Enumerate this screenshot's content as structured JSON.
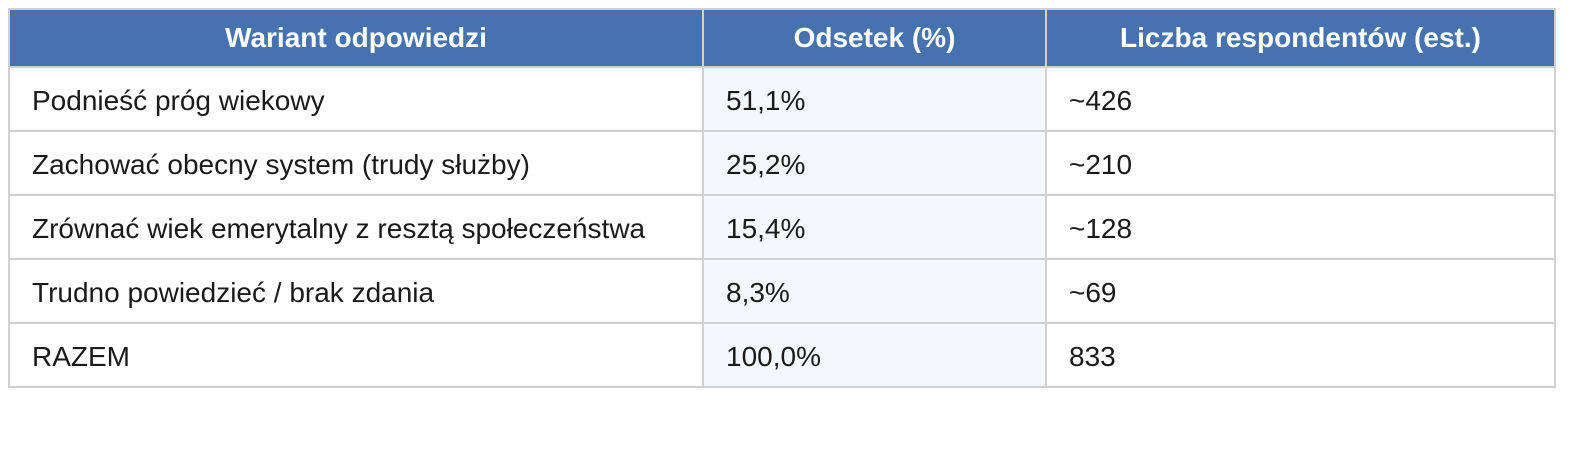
{
  "table": {
    "header": [
      "Wariant odpowiedzi",
      "Odsetek (%)",
      "Liczba respondentów (est.)"
    ],
    "rows": [
      [
        "Podnieść próg wiekowy",
        "51,1%",
        "~426"
      ],
      [
        "Zachować obecny system (trudy służby)",
        "25,2%",
        "~210"
      ],
      [
        "Zrównać wiek emerytalny z resztą społeczeństwa",
        "15,4%",
        "~128"
      ],
      [
        "Trudno powiedzieć / brak zdania",
        "8,3%",
        "~69"
      ],
      [
        "RAZEM",
        "100,0%",
        "833"
      ]
    ]
  }
}
